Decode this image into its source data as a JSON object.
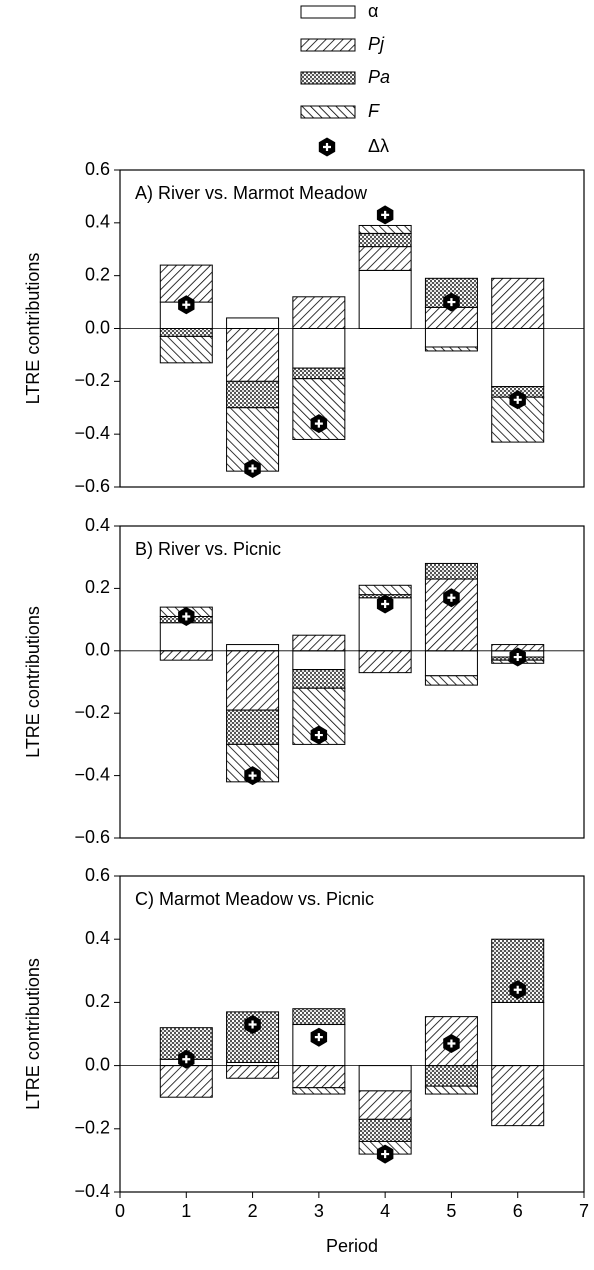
{
  "chart_data": [
    {
      "type": "bar",
      "title": "A) River vs. Marmot Meadow",
      "y_label": "LTRE contributions",
      "x": [
        1,
        2,
        3,
        4,
        5,
        6
      ],
      "xlim": [
        0,
        7
      ],
      "ylim": [
        -0.6,
        0.6
      ],
      "yticks": [
        0.6,
        0.4,
        0.2,
        {
          "value": 0,
          "label": "0.0"
        },
        {
          "value": -0.2,
          "label": "−0.2"
        },
        {
          "value": -0.4,
          "label": "−0.4"
        },
        {
          "value": -0.6,
          "label": "−0.6"
        }
      ],
      "series": [
        {
          "name": "α",
          "pattern": "none",
          "values": [
            0.1,
            0.04,
            -0.15,
            0.22,
            -0.07,
            -0.22
          ]
        },
        {
          "name": "Pj",
          "pattern": "fwd",
          "values": [
            0.14,
            -0.2,
            0.12,
            0.09,
            0.08,
            0.19
          ]
        },
        {
          "name": "Pa",
          "pattern": "cross",
          "values": [
            -0.03,
            -0.1,
            -0.04,
            0.05,
            0.11,
            -0.04
          ]
        },
        {
          "name": "F",
          "pattern": "back",
          "values": [
            -0.1,
            -0.24,
            -0.23,
            0.03,
            -0.015,
            -0.17
          ]
        }
      ],
      "markers": {
        "name": "Δλ",
        "values": [
          0.09,
          -0.53,
          -0.36,
          0.43,
          0.1,
          -0.27
        ]
      }
    },
    {
      "type": "bar",
      "title": "B) River vs. Picnic",
      "y_label": "LTRE contributions",
      "x": [
        1,
        2,
        3,
        4,
        5,
        6
      ],
      "xlim": [
        0,
        7
      ],
      "ylim": [
        -0.6,
        0.4
      ],
      "yticks": [
        0.4,
        0.2,
        {
          "value": 0,
          "label": "0.0"
        },
        {
          "value": -0.2,
          "label": "−0.2"
        },
        {
          "value": -0.4,
          "label": "−0.4"
        },
        {
          "value": -0.6,
          "label": "−0.6"
        }
      ],
      "series": [
        {
          "pattern": "none",
          "values": [
            0.09,
            0.02,
            -0.06,
            0.17,
            -0.08,
            -0.02
          ]
        },
        {
          "pattern": "fwd",
          "values": [
            -0.03,
            -0.19,
            0.05,
            -0.07,
            0.23,
            0.02
          ]
        },
        {
          "pattern": "cross",
          "values": [
            0.02,
            -0.11,
            -0.06,
            0.01,
            0.05,
            -0.01
          ]
        },
        {
          "pattern": "back",
          "values": [
            0.03,
            -0.12,
            -0.18,
            0.03,
            -0.03,
            -0.01
          ]
        }
      ],
      "markers": {
        "values": [
          0.11,
          -0.4,
          -0.27,
          0.15,
          0.17,
          -0.02
        ]
      }
    },
    {
      "type": "bar",
      "title": "C) Marmot Meadow vs. Picnic",
      "y_label": "LTRE contributions",
      "x_label": "Period",
      "x": [
        1,
        2,
        3,
        4,
        5,
        6
      ],
      "xlim": [
        0,
        7
      ],
      "xticks": [
        0,
        1,
        2,
        3,
        4,
        5,
        6,
        7
      ],
      "ylim": [
        -0.4,
        0.6
      ],
      "yticks": [
        0.6,
        0.4,
        0.2,
        {
          "value": 0,
          "label": "0.0"
        },
        {
          "value": -0.2,
          "label": "−0.2"
        },
        {
          "value": -0.4,
          "label": "−0.4"
        }
      ],
      "series": [
        {
          "pattern": "none",
          "values": [
            0.02,
            0.01,
            0.13,
            -0.08,
            0,
            0.2
          ]
        },
        {
          "pattern": "fwd",
          "values": [
            -0.1,
            -0.04,
            -0.07,
            -0.09,
            0.155,
            -0.19
          ]
        },
        {
          "pattern": "cross",
          "values": [
            0.1,
            0.16,
            0.05,
            -0.07,
            -0.065,
            0.2
          ]
        },
        {
          "pattern": "back",
          "values": [
            0,
            0,
            -0.02,
            -0.04,
            -0.025,
            0
          ]
        }
      ],
      "markers": {
        "values": [
          0.02,
          0.13,
          0.09,
          -0.28,
          0.07,
          0.24
        ]
      }
    }
  ]
}
